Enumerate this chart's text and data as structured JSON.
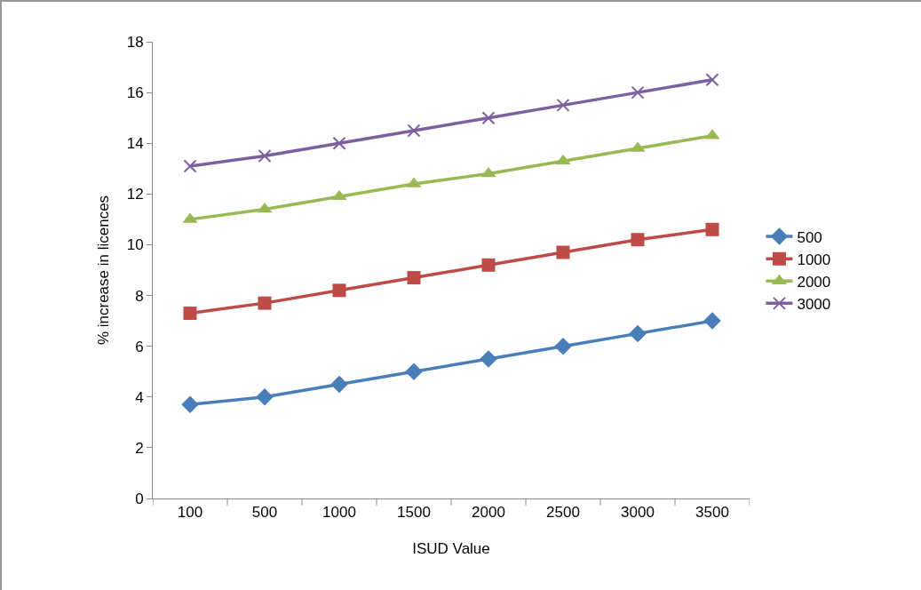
{
  "chart_data": {
    "type": "line",
    "xlabel": "ISUD Value",
    "ylabel": "% increase in licences",
    "categories": [
      "100",
      "500",
      "1000",
      "1500",
      "2000",
      "2500",
      "3000",
      "3500"
    ],
    "ylim": [
      0,
      18
    ],
    "yticks": [
      0,
      2,
      4,
      6,
      8,
      10,
      12,
      14,
      16,
      18
    ],
    "grid": false,
    "legend": "right",
    "line_style": "solid",
    "series": [
      {
        "name": "500",
        "color": "#4a7ebb",
        "marker": "diamond",
        "values": [
          3.7,
          4.0,
          4.5,
          5.0,
          5.5,
          6.0,
          6.5,
          7.0
        ]
      },
      {
        "name": "1000",
        "color": "#be4b48",
        "marker": "square",
        "values": [
          7.3,
          7.7,
          8.2,
          8.7,
          9.2,
          9.7,
          10.2,
          10.6
        ]
      },
      {
        "name": "2000",
        "color": "#98b954",
        "marker": "triangle",
        "values": [
          11.0,
          11.4,
          11.9,
          12.4,
          12.8,
          13.3,
          13.8,
          14.3
        ]
      },
      {
        "name": "3000",
        "color": "#7d60a0",
        "marker": "cross",
        "values": [
          13.1,
          13.5,
          14.0,
          14.5,
          15.0,
          15.5,
          16.0,
          16.5
        ]
      }
    ]
  }
}
